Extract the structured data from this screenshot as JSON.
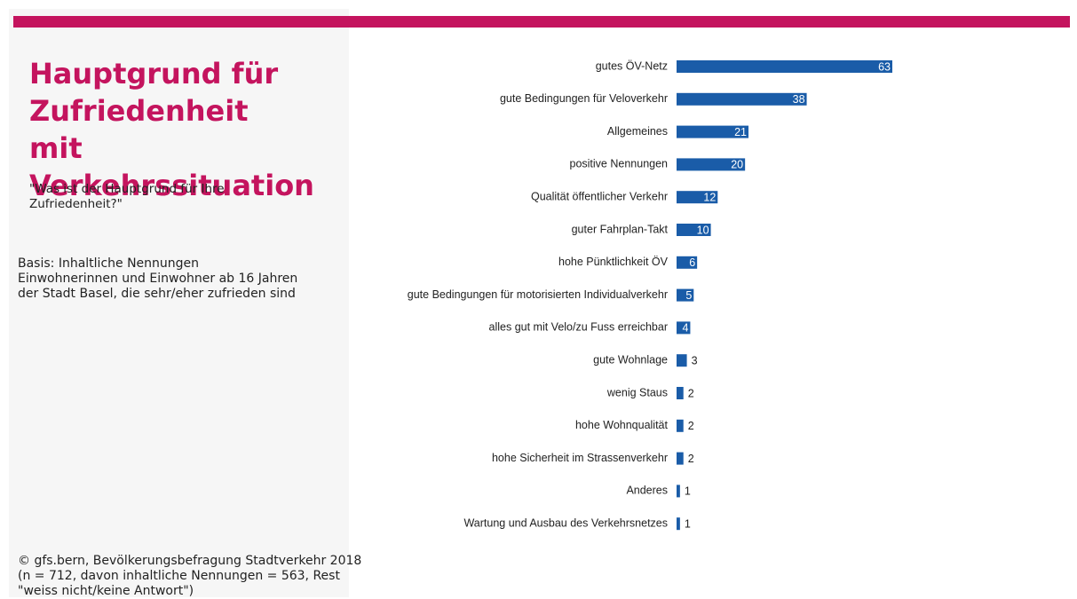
{
  "chart_data": {
    "type": "barh",
    "title": "Hauptgrund für Zufriedenheit mit Verkehrssituation",
    "subtitle": "\"Was ist der Hauptgrund für Ihre Zufriedenheit?\"",
    "basis": [
      "Basis: Inhaltliche Nennungen",
      "Einwohnerinnen und Einwohner ab 16 Jahren",
      "der Stadt Basel, die sehr/eher zufrieden sind"
    ],
    "source": [
      "© gfs.bern, Bevölkerungsbefragung Stadtverkehr 2018",
      "(n = 712, davon inhaltliche Nennungen = 563, Rest",
      "\"weiss nicht/keine Antwort\")"
    ],
    "categories": [
      "gutes ÖV-Netz",
      "gute Bedingungen für Veloverkehr",
      "Allgemeines",
      "positive Nennungen",
      "Qualität öffentlicher Verkehr",
      "guter Fahrplan-Takt",
      "hohe Pünktlichkeit ÖV",
      "gute Bedingungen für motorisierten Individualverkehr",
      "alles gut mit Velo/zu Fuss erreichbar",
      "gute Wohnlage",
      "wenig Staus",
      "hohe Wohnqualität",
      "hohe Sicherheit im Strassenverkehr",
      "Anderes",
      "Wartung und Ausbau des Verkehrsnetzes"
    ],
    "values": [
      63,
      38,
      21,
      20,
      12,
      10,
      6,
      5,
      4,
      3,
      2,
      2,
      2,
      1,
      1
    ],
    "color": "#1a5ca8"
  }
}
